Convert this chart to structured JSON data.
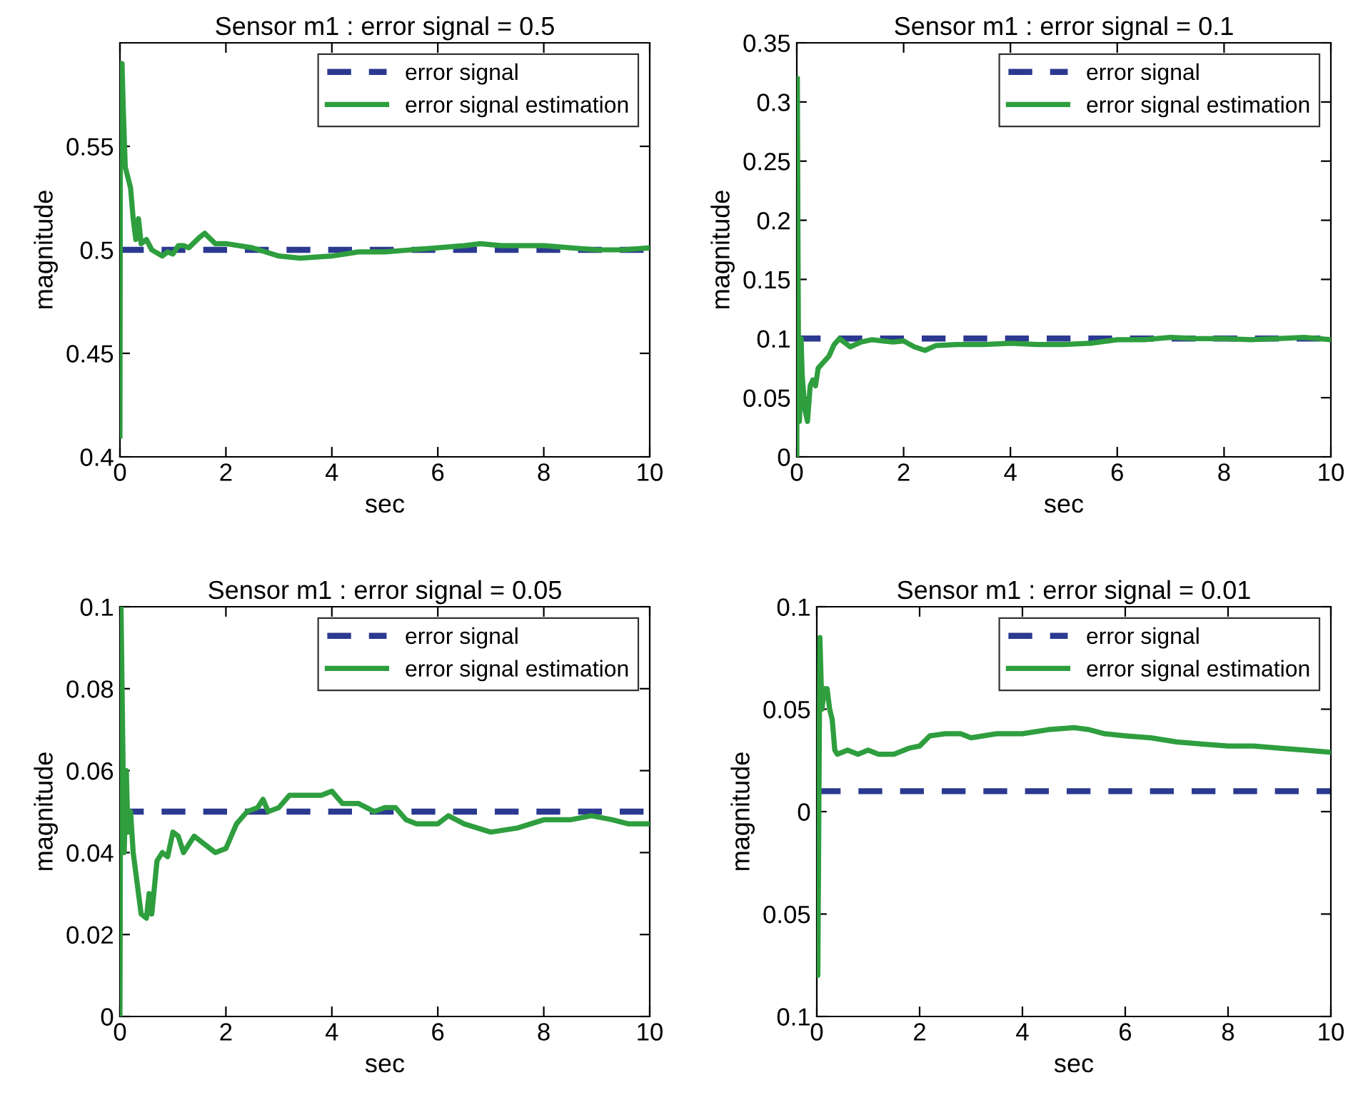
{
  "chart_data": [
    {
      "type": "line",
      "title": "Sensor m1 : error signal = 0.5",
      "xlabel": "sec",
      "ylabel": "magnitude",
      "xlim": [
        0,
        10
      ],
      "xticks": [
        0,
        2,
        4,
        6,
        8,
        10
      ],
      "ylim": [
        0.4,
        0.6
      ],
      "yticks": [
        0.4,
        0.45,
        0.5,
        0.55
      ],
      "grid": false,
      "legend": "top right",
      "ref_lines": [
        {
          "axis": "y",
          "value": 0.5,
          "label": "error signal",
          "color": "#2b3990",
          "line_style": "dashed"
        }
      ],
      "series": [
        {
          "name": "error signal estimation",
          "color": "#2e9e3e",
          "x": [
            0,
            0.01,
            0.04,
            0.06,
            0.1,
            0.15,
            0.2,
            0.25,
            0.3,
            0.35,
            0.4,
            0.5,
            0.6,
            0.8,
            0.9,
            1.0,
            1.1,
            1.2,
            1.3,
            1.5,
            1.6,
            1.8,
            2.0,
            2.5,
            3.0,
            3.4,
            4.0,
            4.5,
            5.0,
            5.5,
            6.0,
            6.5,
            6.8,
            7.2,
            7.6,
            8.0,
            8.5,
            9.0,
            9.5,
            10
          ],
          "values": [
            0.41,
            0.59,
            0.59,
            0.57,
            0.54,
            0.535,
            0.53,
            0.515,
            0.505,
            0.515,
            0.503,
            0.505,
            0.5,
            0.497,
            0.499,
            0.498,
            0.502,
            0.502,
            0.501,
            0.506,
            0.508,
            0.503,
            0.503,
            0.501,
            0.497,
            0.496,
            0.497,
            0.499,
            0.499,
            0.5,
            0.501,
            0.502,
            0.503,
            0.502,
            0.502,
            0.502,
            0.501,
            0.5,
            0.5,
            0.501
          ]
        }
      ]
    },
    {
      "type": "line",
      "title": "Sensor m1 : error signal = 0.1",
      "xlabel": "sec",
      "ylabel": "magnitude",
      "xlim": [
        0,
        10
      ],
      "xticks": [
        0,
        2,
        4,
        6,
        8,
        10
      ],
      "ylim": [
        0,
        0.35
      ],
      "yticks": [
        0,
        0.05,
        0.1,
        0.15,
        0.2,
        0.25,
        0.3,
        0.35
      ],
      "grid": false,
      "legend": "top right",
      "ref_lines": [
        {
          "axis": "y",
          "value": 0.1,
          "label": "error signal",
          "color": "#2b3990",
          "line_style": "dashed"
        }
      ],
      "series": [
        {
          "name": "error signal estimation",
          "color": "#2e9e3e",
          "x": [
            0,
            0.01,
            0.02,
            0.03,
            0.05,
            0.08,
            0.1,
            0.15,
            0.2,
            0.25,
            0.3,
            0.35,
            0.4,
            0.5,
            0.6,
            0.7,
            0.8,
            1.0,
            1.2,
            1.4,
            1.8,
            2.0,
            2.2,
            2.4,
            2.6,
            3.0,
            3.5,
            4.0,
            4.5,
            5.0,
            5.5,
            6.0,
            6.5,
            7.0,
            7.5,
            8.0,
            8.5,
            9.0,
            9.5,
            10
          ],
          "values": [
            0,
            0.32,
            0.2,
            0.1,
            0.03,
            0.1,
            0.07,
            0.04,
            0.03,
            0.06,
            0.065,
            0.06,
            0.075,
            0.08,
            0.085,
            0.095,
            0.1,
            0.093,
            0.097,
            0.099,
            0.097,
            0.098,
            0.093,
            0.09,
            0.094,
            0.095,
            0.095,
            0.096,
            0.095,
            0.095,
            0.096,
            0.099,
            0.099,
            0.101,
            0.1,
            0.1,
            0.099,
            0.1,
            0.101,
            0.099
          ]
        }
      ]
    },
    {
      "type": "line",
      "title": "Sensor m1 : error signal = 0.05",
      "xlabel": "sec",
      "ylabel": "magnitude",
      "xlim": [
        0,
        10
      ],
      "xticks": [
        0,
        2,
        4,
        6,
        8,
        10
      ],
      "ylim": [
        0,
        0.1
      ],
      "yticks": [
        0,
        0.02,
        0.04,
        0.06,
        0.08,
        0.1
      ],
      "grid": false,
      "legend": "top right",
      "ref_lines": [
        {
          "axis": "y",
          "value": 0.05,
          "label": "error signal",
          "color": "#2b3990",
          "line_style": "dashed"
        }
      ],
      "series": [
        {
          "name": "error signal estimation",
          "color": "#2e9e3e",
          "x": [
            0,
            0.02,
            0.05,
            0.08,
            0.12,
            0.15,
            0.2,
            0.25,
            0.3,
            0.35,
            0.4,
            0.5,
            0.55,
            0.6,
            0.7,
            0.8,
            0.9,
            1.0,
            1.1,
            1.2,
            1.4,
            1.6,
            1.8,
            2.0,
            2.2,
            2.4,
            2.6,
            2.7,
            2.8,
            3.0,
            3.2,
            3.5,
            3.8,
            4.0,
            4.2,
            4.5,
            4.8,
            5.0,
            5.2,
            5.4,
            5.6,
            6.0,
            6.2,
            6.5,
            7.0,
            7.5,
            8.0,
            8.5,
            8.9,
            9.3,
            9.6,
            10
          ],
          "values": [
            0,
            0.1,
            0.07,
            0.04,
            0.06,
            0.045,
            0.05,
            0.04,
            0.035,
            0.03,
            0.025,
            0.024,
            0.03,
            0.025,
            0.038,
            0.04,
            0.039,
            0.045,
            0.044,
            0.04,
            0.044,
            0.042,
            0.04,
            0.041,
            0.047,
            0.05,
            0.051,
            0.053,
            0.05,
            0.051,
            0.054,
            0.054,
            0.054,
            0.055,
            0.052,
            0.052,
            0.05,
            0.051,
            0.051,
            0.048,
            0.047,
            0.047,
            0.049,
            0.047,
            0.045,
            0.046,
            0.048,
            0.048,
            0.049,
            0.048,
            0.047,
            0.047
          ]
        }
      ]
    },
    {
      "type": "line",
      "title": "Sensor m1 : error signal = 0.01",
      "xlabel": "sec",
      "ylabel": "magnitude",
      "xlim": [
        0,
        10
      ],
      "xticks": [
        0,
        2,
        4,
        6,
        8,
        10
      ],
      "ylim": [
        -0.1,
        0.1
      ],
      "yticks": [
        {
          "value": -0.1,
          "label": "0.1"
        },
        {
          "value": -0.05,
          "label": "0.05"
        },
        0,
        0.05,
        0.1
      ],
      "grid": false,
      "legend": "top right",
      "ref_lines": [
        {
          "axis": "y",
          "value": 0.01,
          "label": "error signal",
          "color": "#2b3990",
          "line_style": "dashed"
        }
      ],
      "series": [
        {
          "name": "error signal estimation",
          "color": "#2e9e3e",
          "x": [
            0,
            0.02,
            0.04,
            0.06,
            0.1,
            0.15,
            0.2,
            0.25,
            0.3,
            0.35,
            0.4,
            0.6,
            0.8,
            1.0,
            1.2,
            1.5,
            1.8,
            2.0,
            2.2,
            2.5,
            2.8,
            3.0,
            3.5,
            4.0,
            4.5,
            5.0,
            5.3,
            5.6,
            6.0,
            6.5,
            7.0,
            7.5,
            8.0,
            8.5,
            9.0,
            9.5,
            10
          ],
          "values": [
            -0.01,
            -0.08,
            0.0,
            0.085,
            0.05,
            0.06,
            0.06,
            0.05,
            0.045,
            0.03,
            0.028,
            0.03,
            0.028,
            0.03,
            0.028,
            0.028,
            0.031,
            0.032,
            0.037,
            0.038,
            0.038,
            0.036,
            0.038,
            0.038,
            0.04,
            0.041,
            0.04,
            0.038,
            0.037,
            0.036,
            0.034,
            0.033,
            0.032,
            0.032,
            0.031,
            0.03,
            0.029
          ]
        }
      ]
    }
  ]
}
